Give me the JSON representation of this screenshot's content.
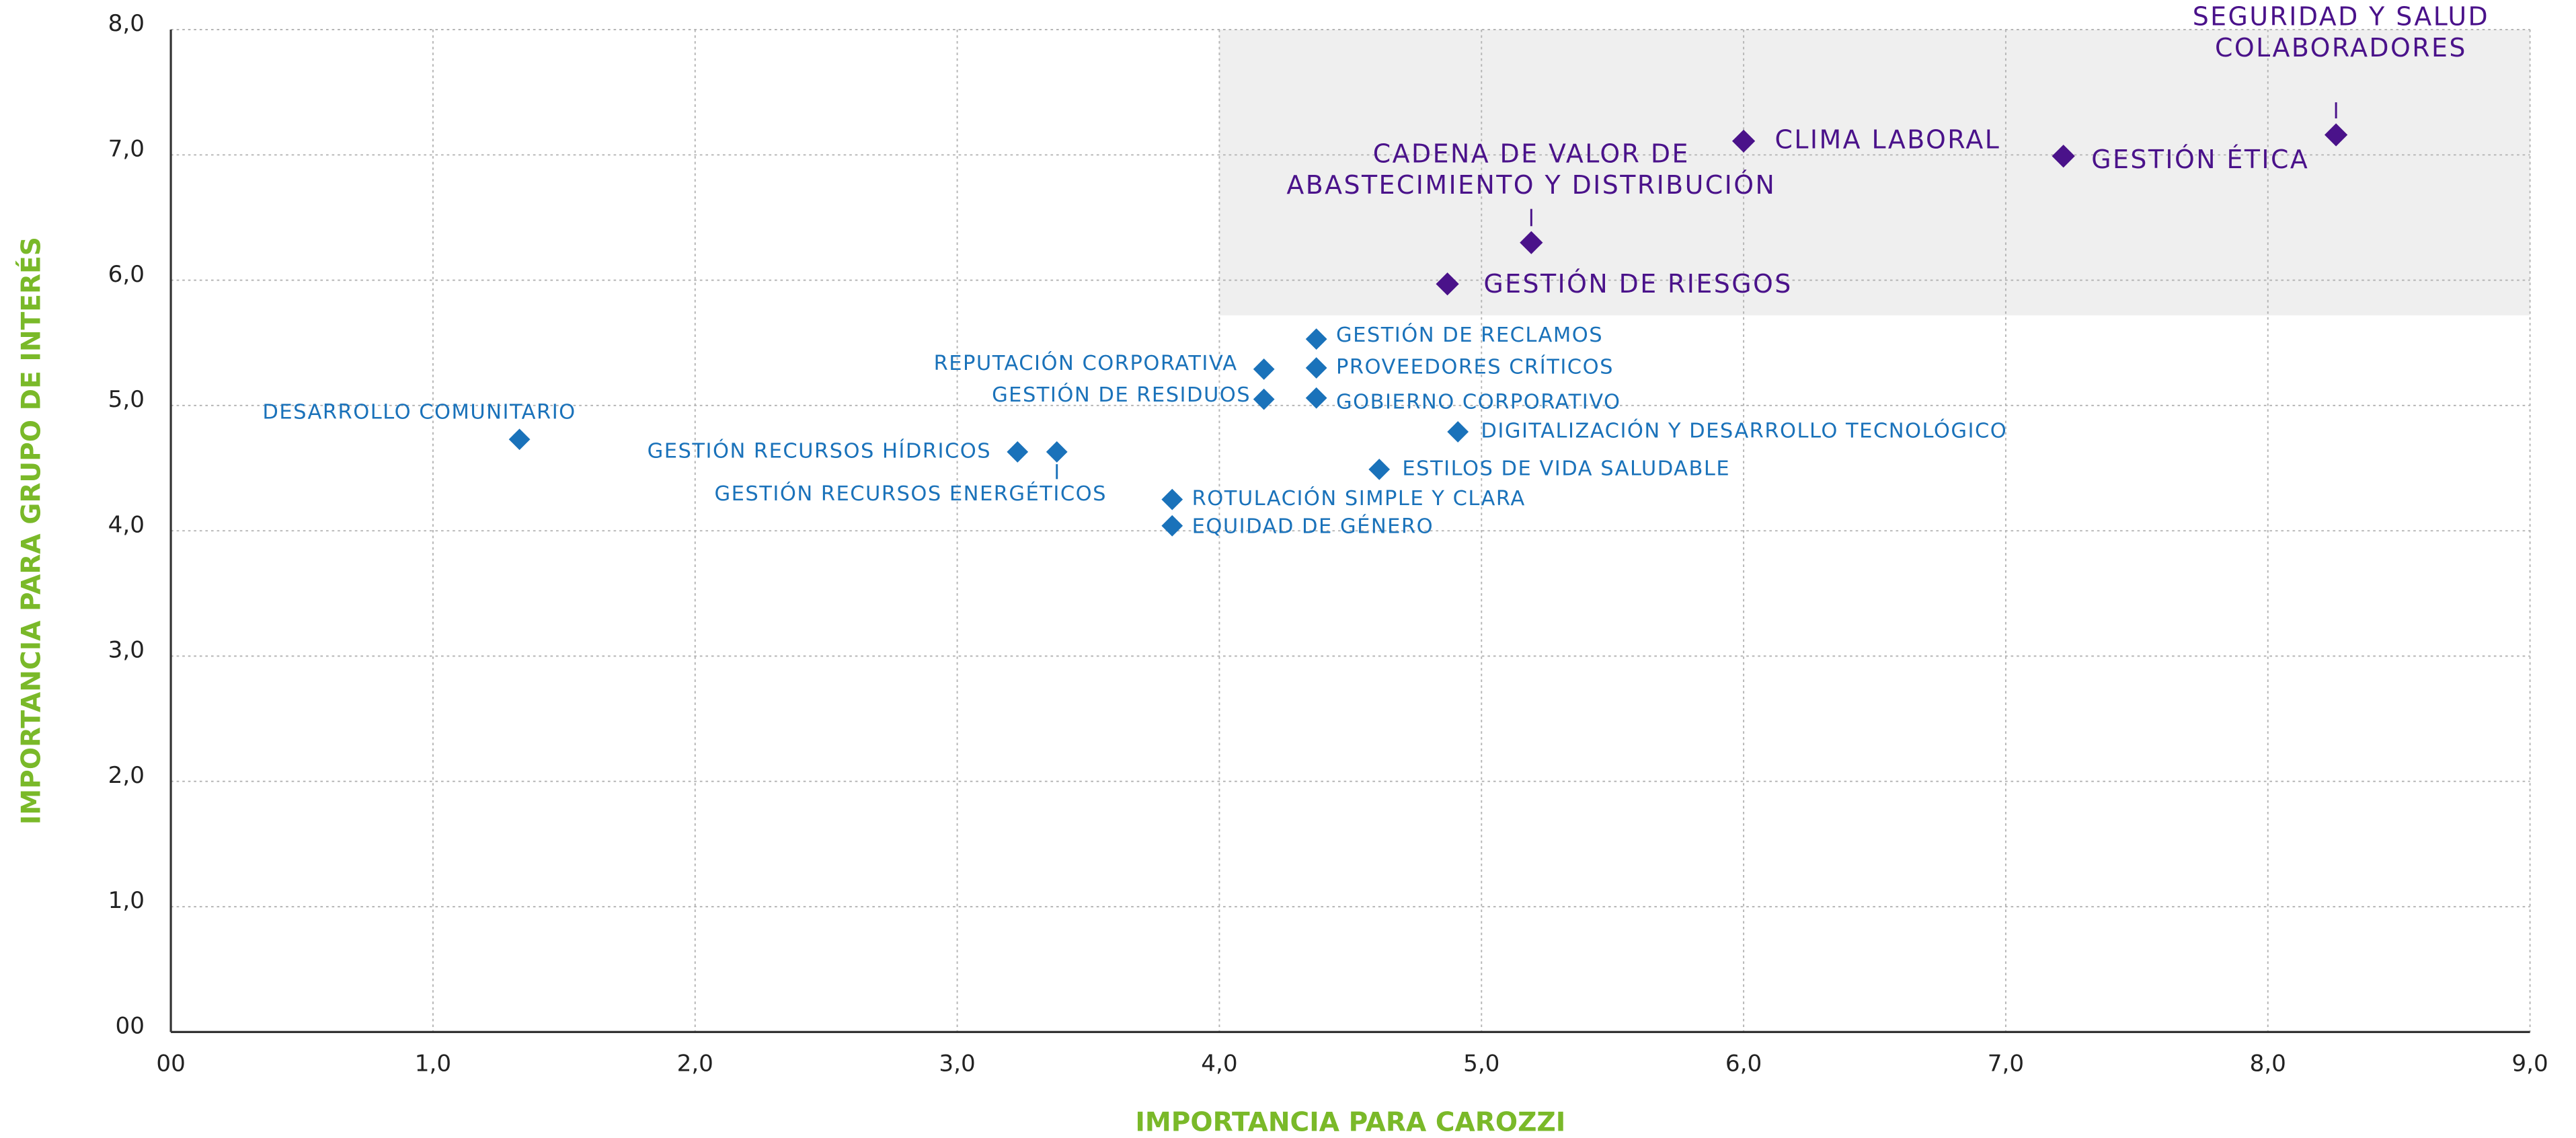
{
  "chart_data": {
    "type": "scatter",
    "xlabel": "IMPORTANCIA PARA CAROZZI",
    "ylabel": "IMPORTANCIA PARA GRUPO DE INTERÉS",
    "xlim": [
      0,
      9
    ],
    "ylim": [
      0,
      8
    ],
    "xticks": [
      {
        "value": 0,
        "label": "00"
      },
      {
        "value": 1,
        "label": "1,0"
      },
      {
        "value": 2,
        "label": "2,0"
      },
      {
        "value": 3,
        "label": "3,0"
      },
      {
        "value": 4,
        "label": "4,0"
      },
      {
        "value": 5,
        "label": "5,0"
      },
      {
        "value": 6,
        "label": "6,0"
      },
      {
        "value": 7,
        "label": "7,0"
      },
      {
        "value": 8,
        "label": "8,0"
      },
      {
        "value": 9,
        "label": "9,0"
      }
    ],
    "yticks": [
      {
        "value": 0,
        "label": "00"
      },
      {
        "value": 1,
        "label": "1,0"
      },
      {
        "value": 2,
        "label": "2,0"
      },
      {
        "value": 3,
        "label": "3,0"
      },
      {
        "value": 4,
        "label": "4,0"
      },
      {
        "value": 5,
        "label": "5,0"
      },
      {
        "value": 6,
        "label": "6,0"
      },
      {
        "value": 7,
        "label": "7,0"
      },
      {
        "value": 8,
        "label": "8,0"
      }
    ],
    "grid": true,
    "highlight_region": {
      "xlim": [
        4,
        9
      ],
      "ylim": [
        5.72,
        8
      ],
      "color": "#efefef"
    },
    "axis_label_color": "#7ab929",
    "series": [
      {
        "color": "#4a128a",
        "labels": [
          [
            "SEGURIDAD Y SALUD",
            "COLABORADORES"
          ],
          [
            "CLIMA LABORAL"
          ],
          [
            "GESTIÓN ÉTICA"
          ],
          [
            "CADENA DE VALOR DE",
            "ABASTECIMIENTO Y DISTRIBUCIÓN"
          ],
          [
            "GESTIÓN DE RIESGOS"
          ]
        ],
        "x": [
          8.26,
          6.0,
          7.22,
          5.19,
          4.87
        ],
        "y": [
          7.16,
          7.11,
          6.99,
          6.3,
          5.97
        ]
      },
      {
        "color": "#1a72ba",
        "labels": [
          [
            "GESTIÓN DE RECLAMOS"
          ],
          [
            "PROVEEDORES CRÍTICOS"
          ],
          [
            "REPUTACIÓN CORPORATIVA"
          ],
          [
            "GESTIÓN DE RESIDUOS"
          ],
          [
            "GOBIERNO CORPORATIVO"
          ],
          [
            "DIGITALIZACIÓN Y DESARROLLO TECNOLÓGICO"
          ],
          [
            "DESARROLLO COMUNITARIO"
          ],
          [
            "GESTIÓN RECURSOS HÍDRICOS"
          ],
          [
            "GESTIÓN RECURSOS ENERGÉTICOS"
          ],
          [
            "ESTILOS DE VIDA SALUDABLE"
          ],
          [
            "ROTULACIÓN SIMPLE Y CLARA"
          ],
          [
            "EQUIDAD DE GÉNERO"
          ]
        ],
        "x": [
          4.37,
          4.37,
          4.17,
          4.17,
          4.37,
          4.91,
          1.33,
          3.23,
          3.38,
          4.61,
          3.82,
          3.82
        ],
        "y": [
          5.53,
          5.3,
          5.29,
          5.05,
          5.06,
          4.79,
          4.73,
          4.63,
          4.63,
          4.49,
          4.25,
          4.04
        ]
      }
    ]
  }
}
